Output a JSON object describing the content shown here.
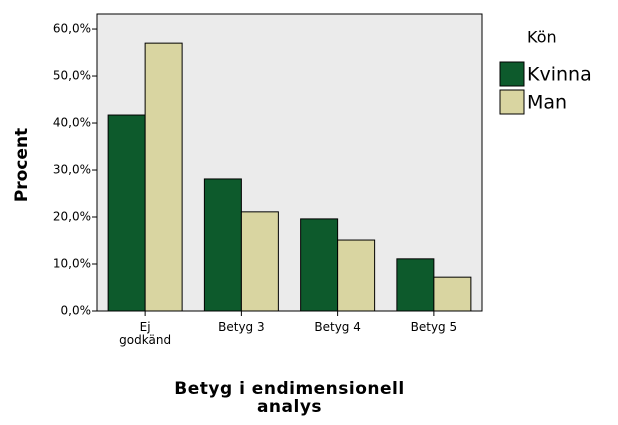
{
  "chart_data": {
    "type": "bar",
    "categories": [
      "Ej godkänd",
      "Betyg 3",
      "Betyg 4",
      "Betyg 5"
    ],
    "series": [
      {
        "name": "Kvinna",
        "color": "#0d5a2c",
        "values": [
          41.7,
          28.1,
          19.6,
          11.1
        ]
      },
      {
        "name": "Man",
        "color": "#d9d5a1",
        "values": [
          57.0,
          21.1,
          15.1,
          7.2
        ]
      }
    ],
    "ylim": [
      0,
      63.2
    ],
    "yticks": [
      {
        "value": 0,
        "label": "0,0%"
      },
      {
        "value": 10,
        "label": "10,0%"
      },
      {
        "value": 20,
        "label": "20,0%"
      },
      {
        "value": 30,
        "label": "30,0%"
      },
      {
        "value": 40,
        "label": "40,0%"
      },
      {
        "value": 50,
        "label": "50,0%"
      },
      {
        "value": 60,
        "label": "60,0%"
      }
    ],
    "ylabel": "Procent",
    "xlabel": "Betyg i endimensionell analys",
    "legend_title": "Kön",
    "legend": "right"
  }
}
